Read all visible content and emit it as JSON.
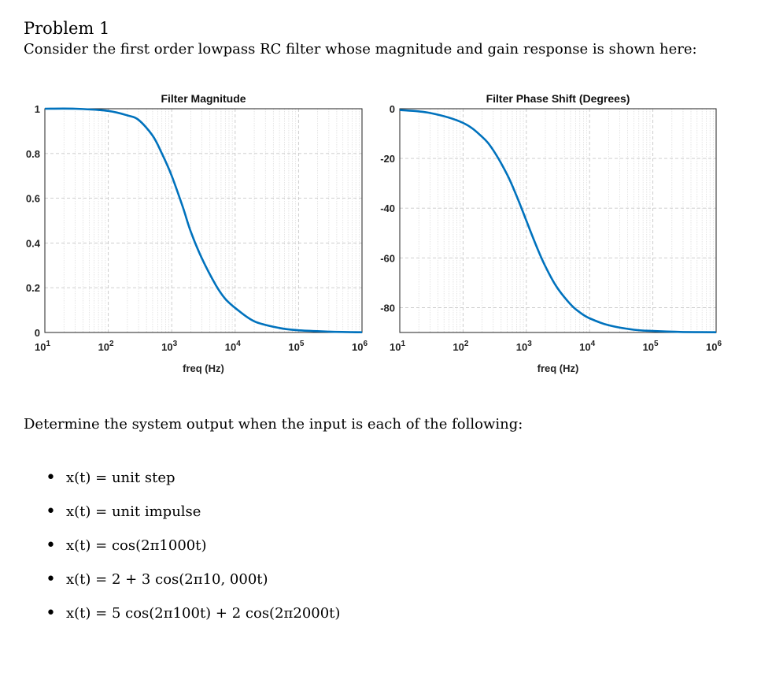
{
  "problem": {
    "title": "Problem 1",
    "intro": "Consider the first order lowpass RC filter whose magnitude and gain response is shown here:",
    "task": "Determine the system output when the input is each of the following:",
    "inputs": [
      "x(t) = unit step",
      "x(t) = unit impulse",
      "x(t) = cos(2π1000t)",
      "x(t) = 2 + 3 cos(2π10, 000t)",
      "x(t) = 5 cos(2π100t) + 2 cos(2π2000t)"
    ]
  },
  "chart_data": [
    {
      "type": "line",
      "title": "Filter Magnitude",
      "xlabel": "freq (Hz)",
      "ylabel": "",
      "xscale": "log",
      "xlim": [
        10,
        1000000
      ],
      "ylim": [
        0,
        1
      ],
      "xticks": [
        "10^1",
        "10^2",
        "10^3",
        "10^4",
        "10^5",
        "10^6"
      ],
      "yticks": [
        "0",
        "0.2",
        "0.4",
        "0.6",
        "0.8",
        "1"
      ],
      "grid": true,
      "line_color": "#0072BD",
      "series": [
        {
          "x": [
            10,
            30,
            100,
            200,
            300,
            500,
            700,
            1000,
            1500,
            2000,
            3000,
            5000,
            7000,
            10000,
            20000,
            50000,
            100000,
            300000,
            1000000
          ],
          "y": [
            1.0,
            1.0,
            0.99,
            0.97,
            0.95,
            0.88,
            0.8,
            0.7,
            0.56,
            0.45,
            0.33,
            0.21,
            0.15,
            0.11,
            0.05,
            0.02,
            0.01,
            0.004,
            0.001
          ]
        }
      ]
    },
    {
      "type": "line",
      "title": "Filter Phase Shift (Degrees)",
      "xlabel": "freq (Hz)",
      "ylabel": "",
      "xscale": "log",
      "xlim": [
        10,
        1000000
      ],
      "ylim": [
        -90,
        0
      ],
      "xticks": [
        "10^1",
        "10^2",
        "10^3",
        "10^4",
        "10^5",
        "10^6"
      ],
      "yticks": [
        "-80",
        "-60",
        "-40",
        "-20",
        "0"
      ],
      "grid": true,
      "line_color": "#0072BD",
      "series": [
        {
          "x": [
            10,
            30,
            100,
            200,
            300,
            500,
            700,
            1000,
            1500,
            2000,
            3000,
            5000,
            7000,
            10000,
            20000,
            50000,
            100000,
            300000,
            1000000
          ],
          "y": [
            -0.5,
            -1.7,
            -5.7,
            -11.3,
            -16.7,
            -26.6,
            -35.0,
            -45.0,
            -56.3,
            -63.4,
            -71.6,
            -78.7,
            -81.9,
            -84.3,
            -87.1,
            -88.9,
            -89.4,
            -89.8,
            -89.9
          ]
        }
      ]
    }
  ]
}
